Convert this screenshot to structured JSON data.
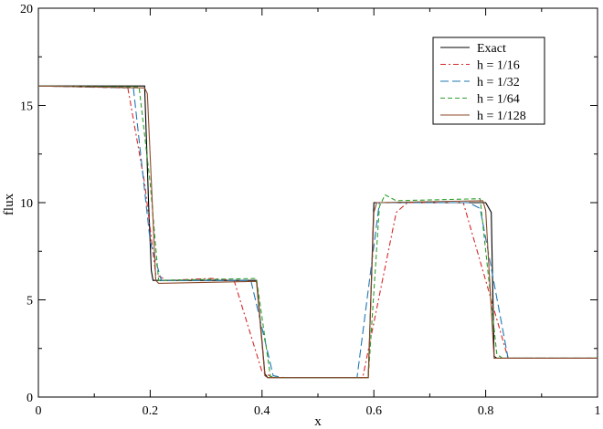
{
  "chart_data": {
    "type": "line",
    "title": "",
    "xlabel": "x",
    "ylabel": "flux",
    "xlim": [
      0,
      1
    ],
    "ylim": [
      0,
      20
    ],
    "x_ticks": [
      0,
      0.2,
      0.4,
      0.6,
      0.8,
      1
    ],
    "x_tick_labels": [
      "0",
      "0.2",
      "0.4",
      "0.6",
      "0.8",
      "1"
    ],
    "y_ticks": [
      0,
      5,
      10,
      15,
      20
    ],
    "y_tick_labels": [
      "0",
      "5",
      "10",
      "15",
      "20"
    ],
    "grid": false,
    "legend_position": "top-right",
    "series": [
      {
        "name": "Exact",
        "color": "#000000",
        "dash": "solid",
        "points": [
          [
            0,
            16
          ],
          [
            0.19,
            16
          ],
          [
            0.197,
            10
          ],
          [
            0.202,
            6.5
          ],
          [
            0.205,
            6
          ],
          [
            0.39,
            6
          ],
          [
            0.392,
            5.5
          ],
          [
            0.405,
            1.2
          ],
          [
            0.41,
            1
          ],
          [
            0.59,
            1
          ],
          [
            0.6,
            10
          ],
          [
            0.8,
            10
          ],
          [
            0.81,
            9.5
          ],
          [
            0.815,
            2.1
          ],
          [
            0.82,
            2
          ],
          [
            1,
            2
          ]
        ]
      },
      {
        "name": "h = 1/16",
        "color": "#d62728",
        "dash": "6,3,2,3",
        "points": [
          [
            0,
            16
          ],
          [
            0.16,
            15.9
          ],
          [
            0.19,
            11
          ],
          [
            0.21,
            6.3
          ],
          [
            0.23,
            6
          ],
          [
            0.31,
            6.1
          ],
          [
            0.35,
            6
          ],
          [
            0.4,
            1.3
          ],
          [
            0.42,
            1
          ],
          [
            0.58,
            1
          ],
          [
            0.64,
            9.5
          ],
          [
            0.66,
            10
          ],
          [
            0.76,
            10
          ],
          [
            0.82,
            4
          ],
          [
            0.84,
            2
          ],
          [
            1,
            2
          ]
        ]
      },
      {
        "name": "h = 1/32",
        "color": "#1f77b4",
        "dash": "9,4",
        "points": [
          [
            0,
            16
          ],
          [
            0.17,
            15.9
          ],
          [
            0.2,
            8
          ],
          [
            0.22,
            6
          ],
          [
            0.38,
            6
          ],
          [
            0.42,
            1.1
          ],
          [
            0.44,
            1
          ],
          [
            0.57,
            1
          ],
          [
            0.61,
            10
          ],
          [
            0.63,
            10
          ],
          [
            0.77,
            10
          ],
          [
            0.79,
            9.7
          ],
          [
            0.84,
            2
          ],
          [
            1,
            2
          ]
        ]
      },
      {
        "name": "h = 1/64",
        "color": "#2ca02c",
        "dash": "5,3",
        "points": [
          [
            0,
            16
          ],
          [
            0.18,
            15.95
          ],
          [
            0.2,
            11
          ],
          [
            0.215,
            6
          ],
          [
            0.39,
            6.1
          ],
          [
            0.415,
            1.05
          ],
          [
            0.43,
            1
          ],
          [
            0.59,
            1
          ],
          [
            0.61,
            9.8
          ],
          [
            0.62,
            10.4
          ],
          [
            0.64,
            10.1
          ],
          [
            0.79,
            10.2
          ],
          [
            0.82,
            2.2
          ],
          [
            0.83,
            2
          ],
          [
            1,
            2
          ]
        ]
      },
      {
        "name": "h = 1/128",
        "color": "#8c4a2a",
        "dash": "solid",
        "points": [
          [
            0,
            16
          ],
          [
            0.19,
            15.9
          ],
          [
            0.195,
            15.6
          ],
          [
            0.21,
            6
          ],
          [
            0.215,
            5.85
          ],
          [
            0.39,
            5.95
          ],
          [
            0.405,
            1.1
          ],
          [
            0.41,
            1
          ],
          [
            0.59,
            1
          ],
          [
            0.6,
            9.5
          ],
          [
            0.605,
            10
          ],
          [
            0.795,
            10.1
          ],
          [
            0.8,
            9.6
          ],
          [
            0.815,
            2
          ],
          [
            1,
            2
          ]
        ]
      }
    ]
  }
}
